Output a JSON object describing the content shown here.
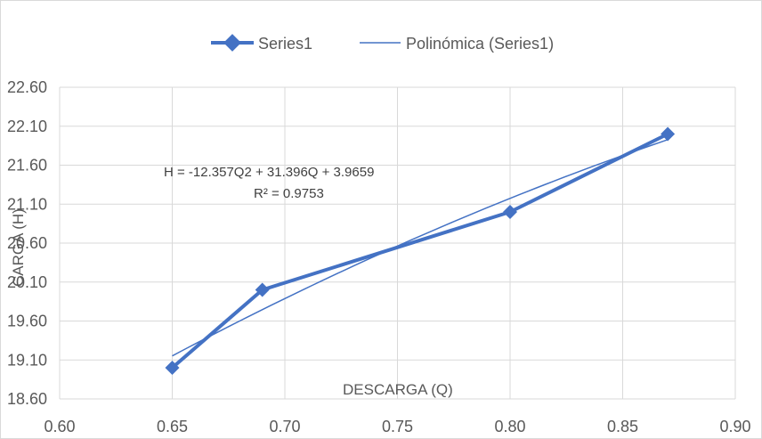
{
  "chart_data": {
    "type": "scatter",
    "xlabel": "DESCARGA (Q)",
    "ylabel": "CARGA (H)",
    "xlim": [
      0.6,
      0.9
    ],
    "ylim": [
      18.6,
      22.6
    ],
    "x_ticks": [
      "0.60",
      "0.65",
      "0.70",
      "0.75",
      "0.80",
      "0.85",
      "0.90"
    ],
    "y_ticks": [
      "18.60",
      "19.10",
      "19.60",
      "20.10",
      "20.60",
      "21.10",
      "21.60",
      "22.10",
      "22.60"
    ],
    "grid": true,
    "legend_position": "top",
    "series": [
      {
        "name": "Series1",
        "style": "line-with-diamond-markers",
        "color": "#4472c4",
        "points": [
          {
            "x": 0.65,
            "y": 19.0
          },
          {
            "x": 0.69,
            "y": 20.0
          },
          {
            "x": 0.8,
            "y": 21.0
          },
          {
            "x": 0.87,
            "y": 22.0
          }
        ]
      }
    ],
    "trendline": {
      "name": "Polinómica (Series1)",
      "type": "polynomial",
      "color": "#4472c4",
      "coefficients": {
        "a": -12.357,
        "b": 31.396,
        "c": 3.9659
      },
      "x_range": [
        0.65,
        0.87
      ],
      "equation_label": "H = -12.357Q2 + 31.396Q + 3.9659",
      "r2_label": "R² = 0.9753"
    }
  }
}
